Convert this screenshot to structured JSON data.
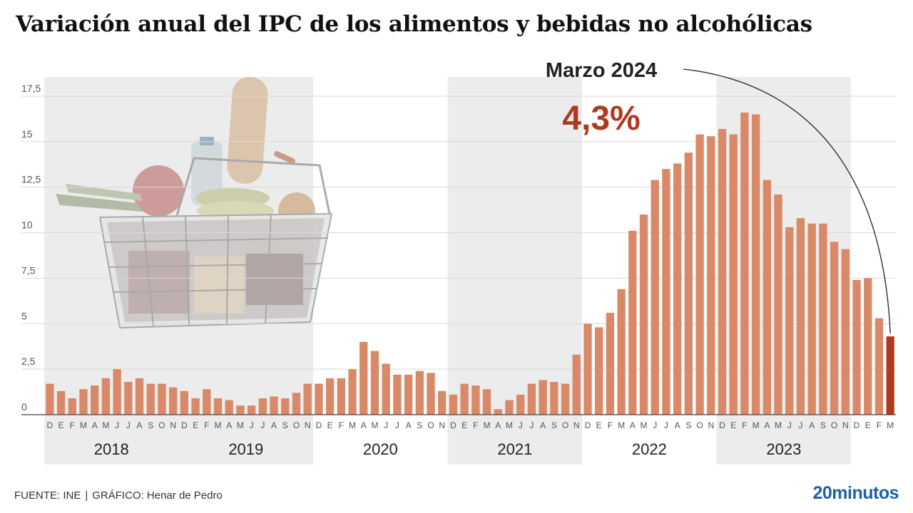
{
  "title": "Variación anual del IPC de los alimentos y bebidas no alcohólicas",
  "footer": {
    "source": "FUENTE: INE",
    "separator": "|",
    "credit": "GRÁFICO: Henar de Pedro",
    "brand": "20minutos"
  },
  "chart_data": {
    "type": "bar",
    "title": "Variación anual del IPC de los alimentos y bebidas no alcohólicas",
    "xlabel": "",
    "ylabel": "",
    "ylim": [
      0,
      17.5
    ],
    "y_ticks": [
      0,
      2.5,
      5,
      7.5,
      10,
      12.5,
      15,
      17.5
    ],
    "y_tick_labels": [
      "0",
      "2,5",
      "5",
      "7,5",
      "10",
      "12,5",
      "15",
      "17,5"
    ],
    "grid": true,
    "categories": [
      "D",
      "E",
      "F",
      "M",
      "A",
      "M",
      "J",
      "J",
      "A",
      "S",
      "O",
      "N",
      "D",
      "E",
      "F",
      "M",
      "A",
      "M",
      "J",
      "J",
      "A",
      "S",
      "O",
      "N",
      "D",
      "E",
      "F",
      "M",
      "A",
      "M",
      "J",
      "J",
      "A",
      "S",
      "O",
      "N",
      "D",
      "E",
      "F",
      "M",
      "A",
      "M",
      "J",
      "J",
      "A",
      "S",
      "O",
      "N",
      "D",
      "E",
      "F",
      "M",
      "A",
      "M",
      "J",
      "J",
      "A",
      "S",
      "O",
      "N",
      "D",
      "E",
      "F",
      "M",
      "A",
      "M",
      "J",
      "J",
      "A",
      "S",
      "O",
      "N",
      "D",
      "E",
      "F",
      "M"
    ],
    "values": [
      1.7,
      1.3,
      0.9,
      1.4,
      1.6,
      2.0,
      2.5,
      1.8,
      2.0,
      1.7,
      1.7,
      1.5,
      1.3,
      0.9,
      1.4,
      0.9,
      0.8,
      0.5,
      0.5,
      0.9,
      1.0,
      0.9,
      1.2,
      1.7,
      1.7,
      2.0,
      2.0,
      2.5,
      4.0,
      3.5,
      2.8,
      2.2,
      2.2,
      2.4,
      2.3,
      1.3,
      1.1,
      1.7,
      1.6,
      1.4,
      0.3,
      0.8,
      1.1,
      1.7,
      1.9,
      1.8,
      1.7,
      3.3,
      5.0,
      4.8,
      5.6,
      6.9,
      10.1,
      11.0,
      12.9,
      13.5,
      13.8,
      14.4,
      15.4,
      15.3,
      15.7,
      15.4,
      16.6,
      16.5,
      12.9,
      12.1,
      10.3,
      10.8,
      10.5,
      10.5,
      9.5,
      9.1,
      7.4,
      7.5,
      5.3,
      4.3
    ],
    "highlight_index": 75,
    "colors": {
      "bar": "#d98868",
      "highlight": "#b03a1f",
      "year_band": "#ececec",
      "grid": "#d9d9d9",
      "axis": "#444444"
    },
    "years": [
      {
        "label": "2018",
        "start": 0,
        "end": 12,
        "shaded": true
      },
      {
        "label": "2019",
        "start": 12,
        "end": 24,
        "shaded": true
      },
      {
        "label": "2020",
        "start": 24,
        "end": 36,
        "shaded": false
      },
      {
        "label": "2021",
        "start": 36,
        "end": 48,
        "shaded": true
      },
      {
        "label": "2022",
        "start": 48,
        "end": 60,
        "shaded": false
      },
      {
        "label": "2023",
        "start": 60,
        "end": 72,
        "shaded": true
      }
    ],
    "annotation": {
      "label": "Marzo 2024",
      "value": "4,3%",
      "index": 75
    }
  }
}
